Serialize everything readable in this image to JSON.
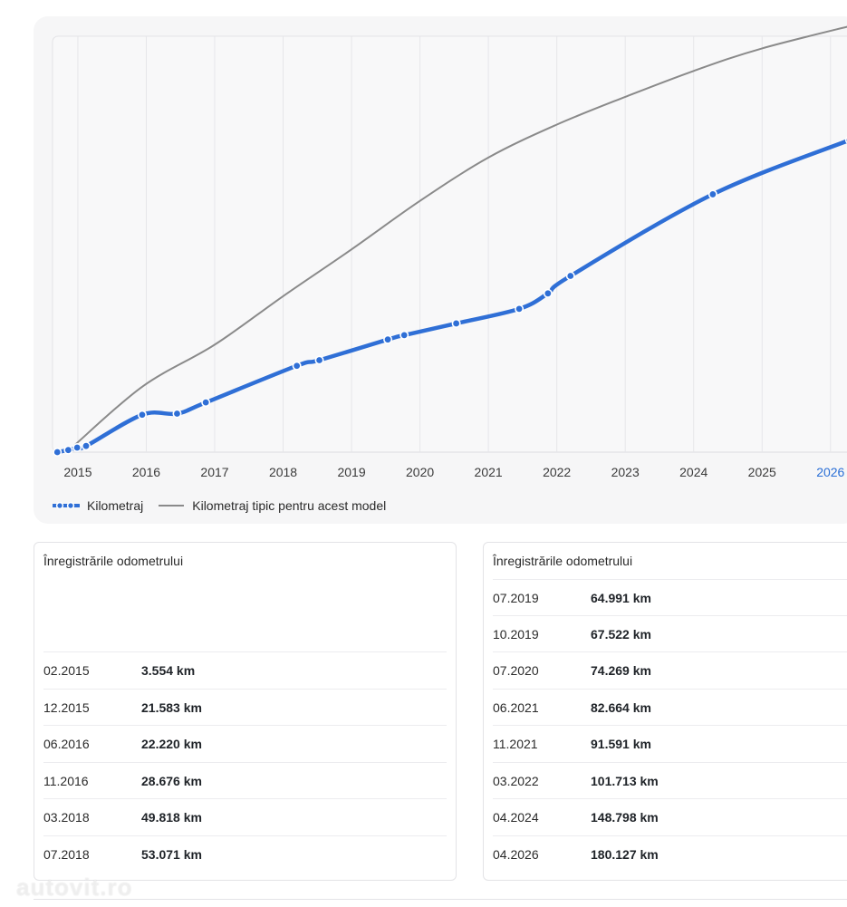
{
  "chart_data": {
    "type": "line",
    "x_ticks": [
      "2015",
      "2016",
      "2017",
      "2018",
      "2019",
      "2020",
      "2021",
      "2022",
      "2023",
      "2024",
      "2025",
      "2026"
    ],
    "highlight_tick": "2026",
    "xlim": [
      2014.63,
      2026.4
    ],
    "ylim": [
      0,
      240000
    ],
    "grid": true,
    "legend_position": "bottom-left",
    "series": [
      {
        "name": "Kilometraj",
        "color": "#2f6fd6",
        "points": [
          {
            "x": 2014.7,
            "y": 0
          },
          {
            "x": 2014.86,
            "y": 1200
          },
          {
            "x": 2014.99,
            "y": 2600
          },
          {
            "x": 2015.12,
            "y": 3554
          },
          {
            "x": 2015.94,
            "y": 21583
          },
          {
            "x": 2016.45,
            "y": 22220
          },
          {
            "x": 2016.87,
            "y": 28676
          },
          {
            "x": 2018.2,
            "y": 49818
          },
          {
            "x": 2018.53,
            "y": 53071
          },
          {
            "x": 2019.53,
            "y": 64991
          },
          {
            "x": 2019.77,
            "y": 67522
          },
          {
            "x": 2020.53,
            "y": 74269
          },
          {
            "x": 2021.45,
            "y": 82664
          },
          {
            "x": 2021.87,
            "y": 91591
          },
          {
            "x": 2022.2,
            "y": 101713
          },
          {
            "x": 2024.28,
            "y": 148798
          },
          {
            "x": 2026.28,
            "y": 180127
          }
        ]
      },
      {
        "name": "Kilometraj tipic pentru acest model",
        "color": "#8a8a8a",
        "points": [
          {
            "x": 2014.95,
            "y": 4000
          },
          {
            "x": 2015.95,
            "y": 38000
          },
          {
            "x": 2017.0,
            "y": 62000
          },
          {
            "x": 2018.0,
            "y": 90000
          },
          {
            "x": 2019.0,
            "y": 117000
          },
          {
            "x": 2020.0,
            "y": 145000
          },
          {
            "x": 2021.0,
            "y": 170000
          },
          {
            "x": 2022.0,
            "y": 189000
          },
          {
            "x": 2023.0,
            "y": 205000
          },
          {
            "x": 2024.0,
            "y": 220000
          },
          {
            "x": 2025.0,
            "y": 233000
          },
          {
            "x": 2026.4,
            "y": 247000
          }
        ]
      }
    ]
  },
  "legend": [
    {
      "label": "Kilometraj",
      "style": "dotted-blue"
    },
    {
      "label": "Kilometraj tipic pentru acest model",
      "style": "solid-gray"
    }
  ],
  "tables": [
    {
      "title": "Înregistrările odometrului",
      "rows": [
        {
          "date": "02.2015",
          "km": "3.554 km"
        },
        {
          "date": "12.2015",
          "km": "21.583 km"
        },
        {
          "date": "06.2016",
          "km": "22.220 km"
        },
        {
          "date": "11.2016",
          "km": "28.676 km"
        },
        {
          "date": "03.2018",
          "km": "49.818 km"
        },
        {
          "date": "07.2018",
          "km": "53.071 km"
        }
      ]
    },
    {
      "title": "Înregistrările odometrului",
      "rows": [
        {
          "date": "07.2019",
          "km": "64.991 km"
        },
        {
          "date": "10.2019",
          "km": "67.522 km"
        },
        {
          "date": "07.2020",
          "km": "74.269 km"
        },
        {
          "date": "06.2021",
          "km": "82.664 km"
        },
        {
          "date": "11.2021",
          "km": "91.591 km"
        },
        {
          "date": "03.2022",
          "km": "101.713 km"
        },
        {
          "date": "04.2024",
          "km": "148.798 km"
        },
        {
          "date": "04.2026",
          "km": "180.127 km"
        }
      ]
    }
  ],
  "watermark": "autovit.ro"
}
